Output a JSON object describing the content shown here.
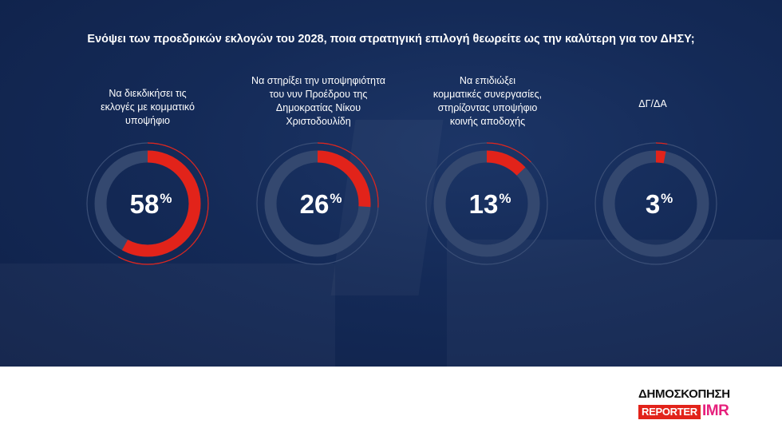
{
  "title": "Ενόψει των προεδρικών εκλογών του 2028, ποια στρατηγική επιλογή θεωρείτε ως την καλύτερη για τον ΔΗΣΥ;",
  "colors": {
    "background": "#142a57",
    "accent": "#e2231a",
    "track": "#34486f",
    "ring_outline": "#3b4f77",
    "text": "#ffffff"
  },
  "chart_data": {
    "type": "pie",
    "variant": "donut",
    "title": "Ενόψει των προεδρικών εκλογών του 2028, ποια στρατηγική επιλογή θεωρείτε ως την καλύτερη για τον ΔΗΣΥ;",
    "categories": [
      "Να διεκδικήσει τις εκλογές με κομματικό υποψήφιο",
      "Να στηρίξει την υποψηφιότητα του νυν Προέδρου της Δημοκρατίας Νίκου Χριστοδουλίδη",
      "Να επιδιώξει κομματικές συνεργασίες, στηρίζοντας υποψήφιο κοινής αποδοχής",
      "ΔΓ/ΔΑ"
    ],
    "values": [
      58,
      26,
      13,
      3
    ],
    "unit": "%"
  },
  "items": [
    {
      "label_lines": [
        "Να διεκδικήσει τις",
        "εκλογές με κομματικό",
        "υποψήφιο"
      ],
      "value": "58",
      "unit": "%"
    },
    {
      "label_lines": [
        "Να στηρίξει την υποψηφιότητα",
        "του νυν Προέδρου της",
        "Δημοκρατίας Νίκου",
        "Χριστοδουλίδη"
      ],
      "value": "26",
      "unit": "%"
    },
    {
      "label_lines": [
        "Να επιδιώξει",
        "κομματικές συνεργασίες,",
        "στηρίζοντας υποψήφιο",
        "κοινής αποδοχής"
      ],
      "value": "13",
      "unit": "%"
    },
    {
      "label_lines": [
        "ΔΓ/ΔΑ"
      ],
      "value": "3",
      "unit": "%"
    }
  ],
  "footer": {
    "logo_title": "ΔΗΜΟΣΚΟΠΗΣΗ",
    "logo_reporter": "REPORTER",
    "logo_imr": "IMR"
  }
}
